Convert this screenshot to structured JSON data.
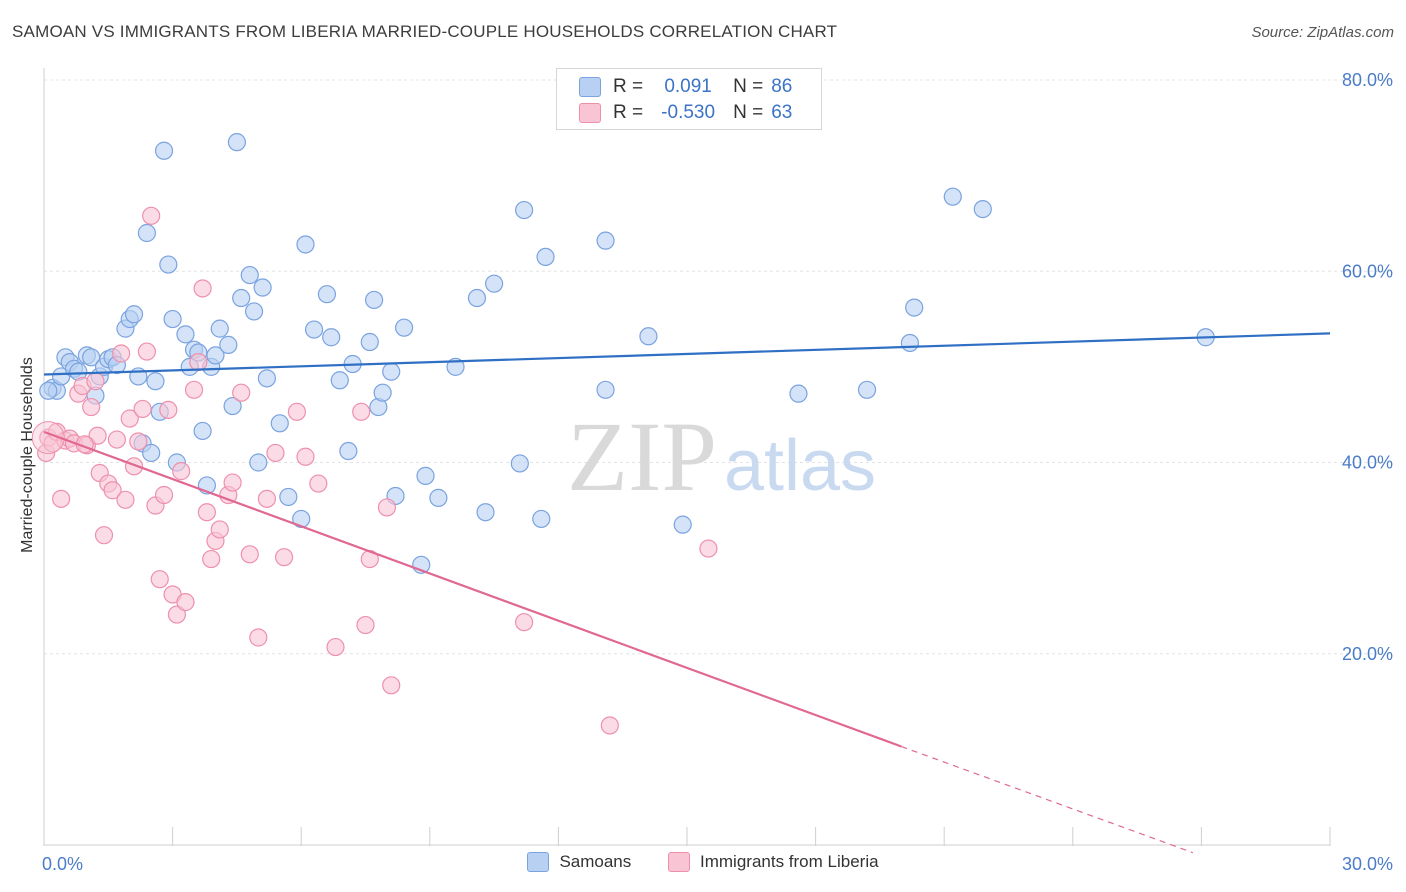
{
  "title": "SAMOAN VS IMMIGRANTS FROM LIBERIA MARRIED-COUPLE HOUSEHOLDS CORRELATION CHART",
  "source": "Source: ZipAtlas.com",
  "watermark": {
    "zip": "ZIP",
    "atlas": "atlas"
  },
  "stats": [
    {
      "r_label": "R =",
      "r_value": "0.091",
      "n_label": "N =",
      "n_value": "86",
      "fill": "#b8d0f2",
      "stroke": "#7aa3e0"
    },
    {
      "r_label": "R =",
      "r_value": "-0.530",
      "n_label": "N =",
      "n_value": "63",
      "fill": "#f9c5d5",
      "stroke": "#ee90ac"
    }
  ],
  "chart_data": {
    "type": "scatter",
    "title": "SAMOAN VS IMMIGRANTS FROM LIBERIA MARRIED-COUPLE HOUSEHOLDS CORRELATION CHART",
    "xlabel": "",
    "ylabel": "Married-couple Households",
    "xlim": [
      0,
      30
    ],
    "ylim": [
      0,
      80
    ],
    "x_tick_labels": [
      {
        "value": 0,
        "label": "0.0%"
      },
      {
        "value": 30,
        "label": "30.0%"
      }
    ],
    "y_tick_labels": [
      {
        "value": 20,
        "label": "20.0%"
      },
      {
        "value": 40,
        "label": "40.0%"
      },
      {
        "value": 60,
        "label": "60.0%"
      },
      {
        "value": 80,
        "label": "80.0%"
      }
    ],
    "grid": true,
    "legend_position": "bottom",
    "series": [
      {
        "name": "Samoans",
        "color": "#7aa3e0",
        "fill": "#b8d0f2",
        "line_color": "#2f6fc4",
        "trend": {
          "x": [
            0,
            30
          ],
          "y": [
            49.2,
            53.5
          ]
        },
        "points": [
          [
            0.2,
            47.8
          ],
          [
            0.3,
            47.5
          ],
          [
            0.4,
            49.0
          ],
          [
            0.5,
            51.0
          ],
          [
            0.6,
            50.5
          ],
          [
            0.7,
            49.8
          ],
          [
            0.8,
            49.5
          ],
          [
            1.0,
            51.2
          ],
          [
            1.1,
            51.0
          ],
          [
            1.2,
            47.0
          ],
          [
            1.3,
            49.0
          ],
          [
            1.4,
            50.0
          ],
          [
            1.5,
            50.8
          ],
          [
            1.6,
            51.0
          ],
          [
            1.7,
            50.2
          ],
          [
            1.9,
            54.0
          ],
          [
            2.0,
            55.0
          ],
          [
            2.1,
            55.5
          ],
          [
            2.2,
            49.0
          ],
          [
            2.3,
            42.0
          ],
          [
            2.4,
            64.0
          ],
          [
            2.5,
            41.0
          ],
          [
            2.6,
            48.5
          ],
          [
            2.7,
            45.3
          ],
          [
            2.8,
            72.6
          ],
          [
            2.9,
            60.7
          ],
          [
            3.0,
            55.0
          ],
          [
            3.1,
            40.0
          ],
          [
            3.3,
            53.4
          ],
          [
            3.4,
            50.0
          ],
          [
            3.5,
            51.8
          ],
          [
            3.6,
            51.5
          ],
          [
            3.7,
            43.3
          ],
          [
            3.8,
            37.6
          ],
          [
            3.9,
            50.0
          ],
          [
            4.0,
            51.2
          ],
          [
            4.1,
            54.0
          ],
          [
            4.3,
            52.3
          ],
          [
            4.4,
            45.9
          ],
          [
            4.5,
            73.5
          ],
          [
            4.6,
            57.2
          ],
          [
            4.8,
            59.6
          ],
          [
            4.9,
            55.8
          ],
          [
            5.0,
            40.0
          ],
          [
            5.1,
            58.3
          ],
          [
            5.2,
            48.8
          ],
          [
            5.5,
            44.1
          ],
          [
            5.7,
            36.4
          ],
          [
            6.0,
            34.1
          ],
          [
            6.1,
            62.8
          ],
          [
            6.3,
            53.9
          ],
          [
            6.6,
            57.6
          ],
          [
            6.7,
            53.1
          ],
          [
            6.9,
            48.6
          ],
          [
            7.1,
            41.2
          ],
          [
            7.2,
            50.3
          ],
          [
            7.6,
            52.6
          ],
          [
            7.7,
            57.0
          ],
          [
            7.8,
            45.8
          ],
          [
            7.9,
            47.3
          ],
          [
            8.1,
            49.5
          ],
          [
            8.2,
            36.5
          ],
          [
            8.4,
            54.1
          ],
          [
            8.8,
            29.3
          ],
          [
            8.9,
            38.6
          ],
          [
            9.2,
            36.3
          ],
          [
            9.6,
            50.0
          ],
          [
            10.1,
            57.2
          ],
          [
            10.3,
            34.8
          ],
          [
            10.5,
            58.7
          ],
          [
            11.1,
            39.9
          ],
          [
            11.2,
            66.4
          ],
          [
            11.6,
            34.1
          ],
          [
            11.7,
            61.5
          ],
          [
            13.1,
            63.2
          ],
          [
            13.1,
            47.6
          ],
          [
            14.1,
            53.2
          ],
          [
            14.9,
            33.5
          ],
          [
            17.6,
            47.2
          ],
          [
            19.2,
            47.6
          ],
          [
            20.2,
            52.5
          ],
          [
            20.3,
            56.2
          ],
          [
            21.2,
            67.8
          ],
          [
            21.9,
            66.5
          ],
          [
            27.1,
            53.1
          ],
          [
            0.1,
            47.5
          ]
        ]
      },
      {
        "name": "Immigrants from Liberia",
        "color": "#ee90ac",
        "fill": "#f9c5d5",
        "line_color": "#e06892",
        "trend": {
          "x": [
            0,
            20.0
          ],
          "y": [
            43.2,
            10.3
          ]
        },
        "trend_dashed": {
          "x": [
            20.0,
            26.8
          ],
          "y": [
            10.3,
            -0.8
          ]
        },
        "points": [
          [
            0.05,
            41.0
          ],
          [
            0.1,
            42.6
          ],
          [
            0.2,
            42.0
          ],
          [
            0.3,
            43.2
          ],
          [
            0.4,
            36.2
          ],
          [
            0.5,
            42.3
          ],
          [
            0.6,
            42.5
          ],
          [
            0.7,
            42.0
          ],
          [
            0.8,
            47.2
          ],
          [
            0.9,
            48.0
          ],
          [
            1.0,
            41.8
          ],
          [
            1.1,
            45.8
          ],
          [
            1.2,
            48.5
          ],
          [
            1.3,
            38.9
          ],
          [
            1.4,
            32.4
          ],
          [
            1.5,
            37.8
          ],
          [
            1.6,
            37.1
          ],
          [
            1.7,
            42.4
          ],
          [
            1.8,
            51.4
          ],
          [
            1.9,
            36.1
          ],
          [
            2.0,
            44.6
          ],
          [
            2.1,
            39.6
          ],
          [
            2.2,
            42.2
          ],
          [
            2.3,
            45.6
          ],
          [
            2.4,
            51.6
          ],
          [
            2.5,
            65.8
          ],
          [
            2.6,
            35.5
          ],
          [
            2.7,
            27.8
          ],
          [
            2.8,
            36.6
          ],
          [
            2.9,
            45.5
          ],
          [
            3.0,
            26.2
          ],
          [
            3.1,
            24.1
          ],
          [
            3.2,
            39.1
          ],
          [
            3.3,
            25.4
          ],
          [
            3.5,
            47.6
          ],
          [
            3.6,
            50.5
          ],
          [
            3.7,
            58.2
          ],
          [
            3.8,
            34.8
          ],
          [
            3.9,
            29.9
          ],
          [
            4.0,
            31.8
          ],
          [
            4.1,
            33.0
          ],
          [
            4.3,
            36.6
          ],
          [
            4.4,
            37.9
          ],
          [
            4.6,
            47.3
          ],
          [
            4.8,
            30.4
          ],
          [
            5.0,
            21.7
          ],
          [
            5.2,
            36.2
          ],
          [
            5.4,
            41.0
          ],
          [
            5.6,
            30.1
          ],
          [
            5.9,
            45.3
          ],
          [
            6.1,
            40.6
          ],
          [
            6.4,
            37.8
          ],
          [
            6.8,
            20.7
          ],
          [
            7.4,
            45.3
          ],
          [
            7.5,
            23.0
          ],
          [
            7.6,
            29.9
          ],
          [
            8.0,
            35.3
          ],
          [
            8.1,
            16.7
          ],
          [
            11.2,
            23.3
          ],
          [
            13.2,
            12.5
          ],
          [
            15.5,
            31.0
          ],
          [
            1.25,
            42.8
          ],
          [
            0.95,
            41.9
          ]
        ]
      }
    ]
  }
}
